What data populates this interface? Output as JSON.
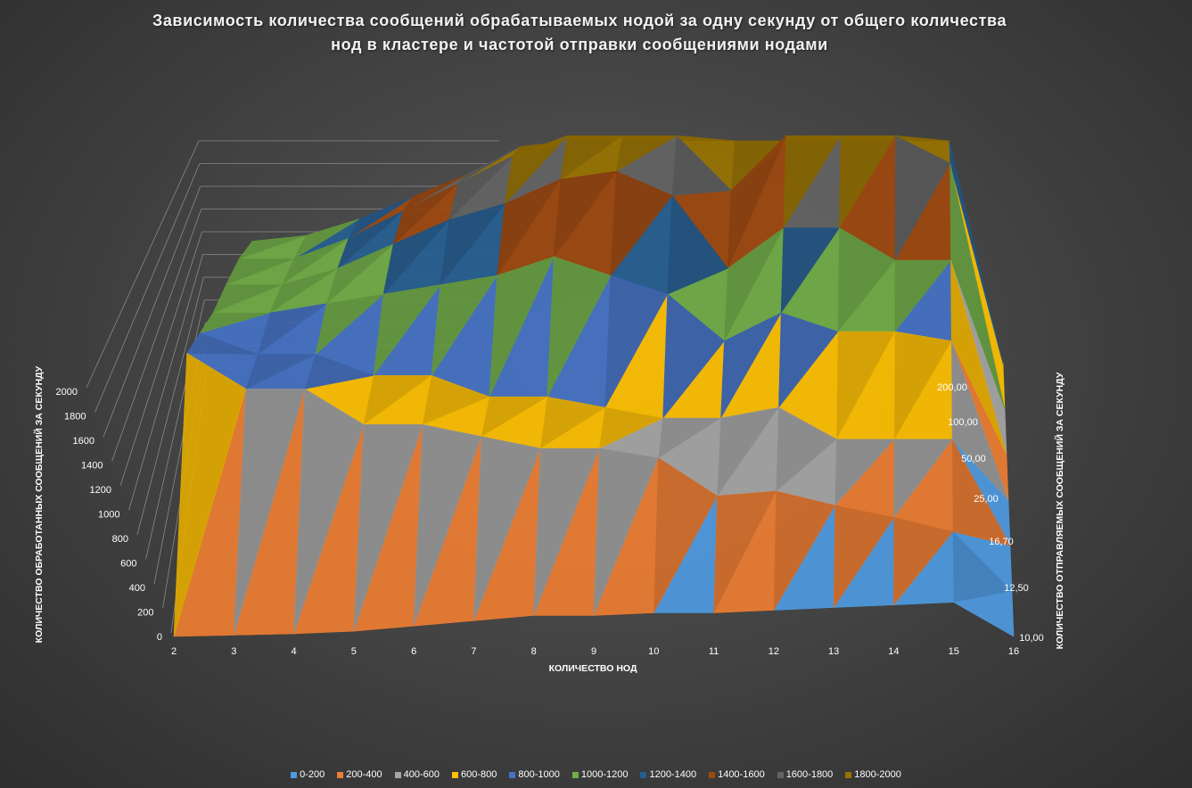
{
  "chart_data": {
    "type": "surface",
    "title_lines": [
      "Зависимость количества сообщений обрабатываемых нодой за одну секунду от общего количества",
      "нод в кластере и частотой отправки сообщениями нодами"
    ],
    "xlabel": "КОЛИЧЕСТВО НОД",
    "ylabel": "КОЛИЧЕСТВО ОБРАБОТАННЫХ СООБЩЕНИЙ ЗА СЕКУНДУ",
    "depth_label": "КОЛИЧЕСТВО ОТПРАВЛЯЕМЫХ СООБЩЕНИЙ ЗА СЕКУНДУ",
    "x_categories": [
      "2",
      "3",
      "4",
      "5",
      "6",
      "7",
      "8",
      "9",
      "10",
      "11",
      "12",
      "13",
      "14",
      "15",
      "16"
    ],
    "depth_categories": [
      "10,00",
      "12,50",
      "16,70",
      "25,00",
      "50,00",
      "100,00",
      "200,00"
    ],
    "z_ticks": [
      "0",
      "200",
      "400",
      "600",
      "800",
      "1000",
      "1200",
      "1400",
      "1600",
      "1800",
      "2000"
    ],
    "zlim": [
      0,
      2000
    ],
    "legend_position": "bottom",
    "bands": [
      {
        "name": "0-200",
        "color": "#4e9ae0"
      },
      {
        "name": "200-400",
        "color": "#ed7d31"
      },
      {
        "name": "400-600",
        "color": "#a5a5a5"
      },
      {
        "name": "600-800",
        "color": "#ffc000"
      },
      {
        "name": "800-1000",
        "color": "#4472c4"
      },
      {
        "name": "1000-1200",
        "color": "#70ad47"
      },
      {
        "name": "1200-1400",
        "color": "#255e91"
      },
      {
        "name": "1400-1600",
        "color": "#9e480e"
      },
      {
        "name": "1600-1800",
        "color": "#636363"
      },
      {
        "name": "1800-2000",
        "color": "#997300"
      }
    ],
    "series": [
      {
        "name": "10,00",
        "values": [
          0,
          5,
          10,
          20,
          40,
          60,
          80,
          80,
          90,
          90,
          100,
          110,
          120,
          130,
          0
        ]
      },
      {
        "name": "12,50",
        "values": [
          1000,
          850,
          850,
          700,
          700,
          650,
          600,
          600,
          560,
          400,
          420,
          360,
          310,
          250,
          0
        ]
      },
      {
        "name": "16,70",
        "values": [
          1000,
          900,
          900,
          800,
          800,
          700,
          700,
          650,
          600,
          600,
          650,
          500,
          500,
          500,
          0
        ]
      },
      {
        "name": "25,00",
        "values": [
          1000,
          1000,
          1050,
          1100,
          1150,
          1200,
          1300,
          1200,
          1100,
          850,
          1000,
          900,
          900,
          850,
          0
        ]
      },
      {
        "name": "50,00",
        "values": [
          1050,
          1050,
          1150,
          1300,
          1450,
          1550,
          1700,
          1750,
          1600,
          1150,
          1400,
          1400,
          1200,
          1200,
          0
        ]
      },
      {
        "name": "100,00",
        "values": [
          1100,
          1100,
          1250,
          1450,
          1650,
          1850,
          2000,
          2000,
          2000,
          1600,
          2000,
          2000,
          2000,
          1800,
          0
        ]
      },
      {
        "name": "200,00",
        "values": [
          1100,
          1150,
          1300,
          1500,
          1700,
          1950,
          2000,
          2000,
          2000,
          2000,
          2000,
          2000,
          2000,
          2000,
          0
        ]
      }
    ]
  }
}
